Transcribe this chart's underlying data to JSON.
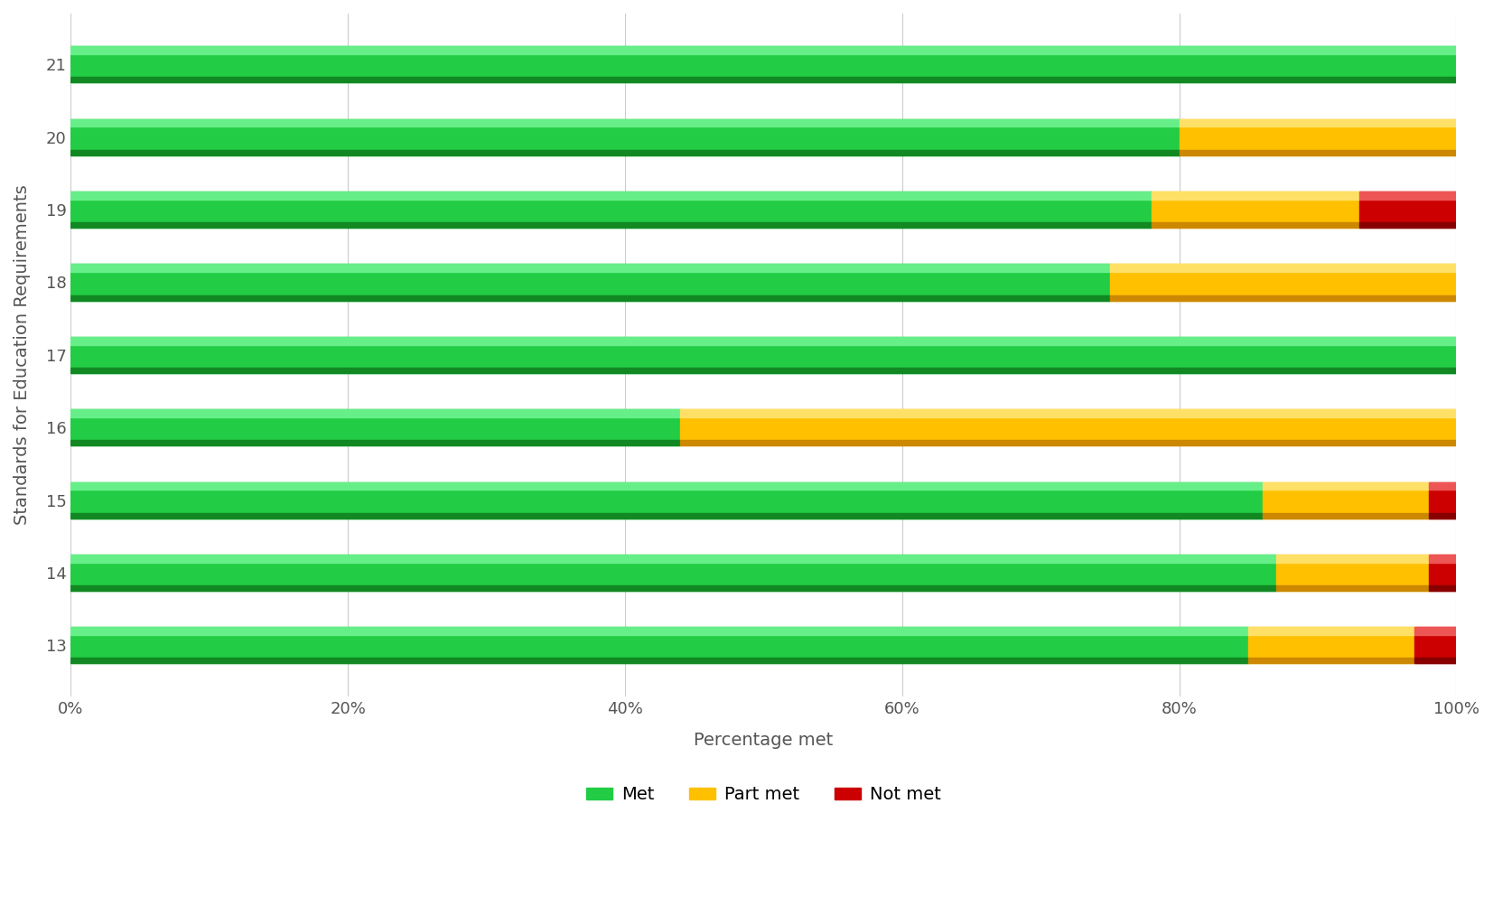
{
  "categories": [
    13,
    14,
    15,
    16,
    17,
    18,
    19,
    20,
    21
  ],
  "met": [
    85,
    87,
    86,
    44,
    100,
    75,
    78,
    80,
    100
  ],
  "part_met": [
    12,
    11,
    12,
    56,
    0,
    25,
    15,
    20,
    0
  ],
  "not_met": [
    3,
    2,
    2,
    0,
    0,
    0,
    7,
    0,
    0
  ],
  "color_met": "#22cc44",
  "color_met_light": "#66ee88",
  "color_met_dark": "#118822",
  "color_part": "#ffc000",
  "color_part_light": "#ffe066",
  "color_part_dark": "#cc8800",
  "color_not": "#cc0000",
  "color_not_light": "#ee5555",
  "color_not_dark": "#880000",
  "xlabel": "Percentage met",
  "ylabel": "Standards for Education Requirements",
  "xlim": [
    0,
    100
  ],
  "xtick_labels": [
    "0%",
    "20%",
    "40%",
    "60%",
    "80%",
    "100%"
  ],
  "xtick_values": [
    0,
    20,
    40,
    60,
    80,
    100
  ],
  "legend_labels": [
    "Met",
    "Part met",
    "Not met"
  ],
  "legend_colors": [
    "#22cc44",
    "#ffc000",
    "#cc0000"
  ],
  "bar_height": 0.5,
  "background_color": "#ffffff",
  "label_fontsize": 14,
  "tick_fontsize": 13,
  "legend_fontsize": 14
}
